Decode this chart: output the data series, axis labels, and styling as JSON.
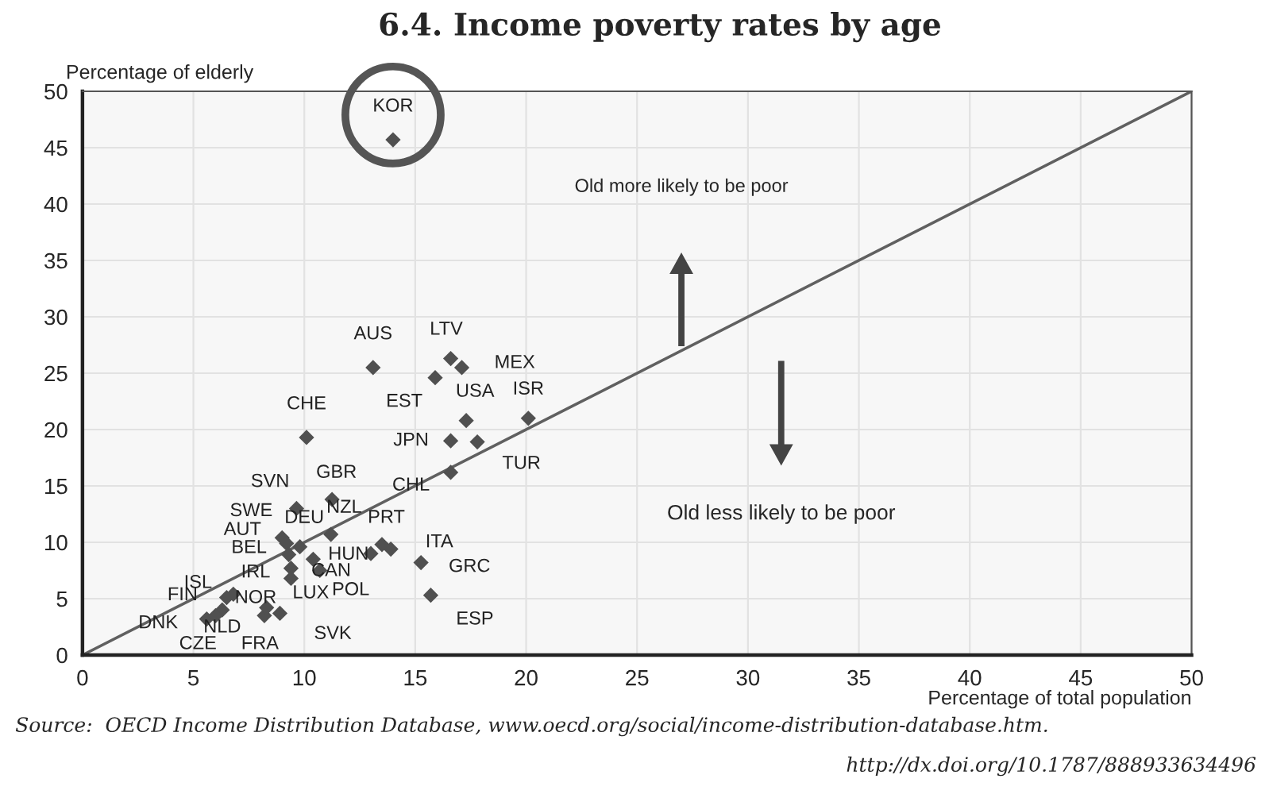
{
  "chart_data": {
    "type": "scatter",
    "title": "6.4. Income poverty rates by age",
    "xlabel": "Percentage of total population",
    "ylabel": "Percentage of elderly",
    "xlim": [
      0,
      50
    ],
    "ylim": [
      0,
      50
    ],
    "xticks": [
      0,
      5,
      10,
      15,
      20,
      25,
      30,
      35,
      40,
      45,
      50
    ],
    "yticks": [
      0,
      5,
      10,
      15,
      20,
      25,
      30,
      35,
      40,
      45,
      50
    ],
    "grid": true,
    "series": [
      {
        "marker": "diamond",
        "color": "#505050",
        "x": [
          14.0,
          13.1,
          16.6,
          17.1,
          15.9,
          17.3,
          20.1,
          10.1,
          16.6,
          17.8,
          16.6,
          11.25,
          9.65,
          9.8,
          11.2,
          9.0,
          9.2,
          9.3,
          9.4,
          9.4,
          10.4,
          10.7,
          13.0,
          13.5,
          13.9,
          15.26,
          15.7,
          6.8,
          6.5,
          6.3,
          5.6,
          6.0,
          8.2,
          8.9,
          8.3
        ],
        "values": [
          45.7,
          25.5,
          26.3,
          25.5,
          24.6,
          20.8,
          21.0,
          19.3,
          19.0,
          18.9,
          16.2,
          13.8,
          13.0,
          9.6,
          10.7,
          10.4,
          9.9,
          8.9,
          7.7,
          6.8,
          8.5,
          7.5,
          9.0,
          9.8,
          9.4,
          8.2,
          5.3,
          5.4,
          5.1,
          4.0,
          3.2,
          3.5,
          3.5,
          3.7,
          4.2
        ]
      },
      {
        "type": "line",
        "color": "#606060",
        "x": [
          0,
          50
        ],
        "values": [
          0,
          50
        ]
      }
    ],
    "annotations": [
      {
        "text": "KOR",
        "x": 14.0,
        "y": 45.7
      },
      {
        "text": "AUS",
        "x": 13.1,
        "y": 25.5
      },
      {
        "text": "LTV",
        "x": 16.6,
        "y": 26.3
      },
      {
        "text": "MEX",
        "x": 17.1,
        "y": 25.5
      },
      {
        "text": "EST",
        "x": 15.9,
        "y": 24.6
      },
      {
        "text": "USA",
        "x": 17.3,
        "y": 20.8
      },
      {
        "text": "ISR",
        "x": 20.1,
        "y": 21.0
      },
      {
        "text": "CHE",
        "x": 10.1,
        "y": 19.3
      },
      {
        "text": "JPN",
        "x": 16.6,
        "y": 19.0
      },
      {
        "text": "TUR",
        "x": 17.8,
        "y": 18.9
      },
      {
        "text": "CHL",
        "x": 16.6,
        "y": 16.2
      },
      {
        "text": "GBR",
        "x": 11.25,
        "y": 13.8
      },
      {
        "text": "SVN",
        "x": 9.65,
        "y": 13.0
      },
      {
        "text": "DEU",
        "x": 9.8,
        "y": 9.6
      },
      {
        "text": "NZL",
        "x": 11.2,
        "y": 10.7
      },
      {
        "text": "SWE",
        "x": 9.0,
        "y": 10.4
      },
      {
        "text": "AUT",
        "x": 9.2,
        "y": 9.9
      },
      {
        "text": "BEL",
        "x": 9.3,
        "y": 8.9
      },
      {
        "text": "IRL",
        "x": 9.4,
        "y": 7.7
      },
      {
        "text": "NOR",
        "x": 9.4,
        "y": 6.8
      },
      {
        "text": "HUN",
        "x": 10.4,
        "y": 8.5
      },
      {
        "text": "POL",
        "x": 10.7,
        "y": 7.5
      },
      {
        "text": "CAN",
        "x": 13.0,
        "y": 9.0
      },
      {
        "text": "PRT",
        "x": 13.5,
        "y": 9.8
      },
      {
        "text": "ITA",
        "x": 13.9,
        "y": 9.4
      },
      {
        "text": "GRC",
        "x": 15.26,
        "y": 8.2
      },
      {
        "text": "ESP",
        "x": 15.7,
        "y": 5.3
      },
      {
        "text": "ISL",
        "x": 6.8,
        "y": 5.4
      },
      {
        "text": "FIN",
        "x": 6.5,
        "y": 5.1
      },
      {
        "text": "NLD",
        "x": 6.3,
        "y": 4.0
      },
      {
        "text": "DNK",
        "x": 5.6,
        "y": 3.2
      },
      {
        "text": "CZE",
        "x": 6.0,
        "y": 3.5
      },
      {
        "text": "FRA",
        "x": 8.2,
        "y": 3.5
      },
      {
        "text": "LUX",
        "x": 8.9,
        "y": 3.7
      },
      {
        "text": "SVK",
        "x": 8.3,
        "y": 4.2
      },
      "Old more likely to be poor",
      "Old less likely to be poor",
      "Source:  OECD Income Distribution Database, www.oecd.org/social/income-distribution-database.htm.",
      "http://dx.doi.org/10.1787/888933634496"
    ]
  }
}
